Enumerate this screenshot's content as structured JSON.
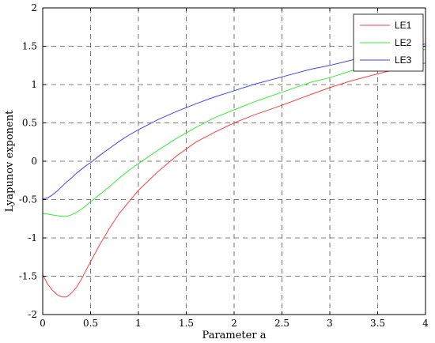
{
  "chart_data": {
    "type": "line",
    "title": "",
    "xlabel": "Parameter a",
    "ylabel": "Lyapunov exponent",
    "xlim": [
      0,
      4
    ],
    "ylim": [
      -2,
      2
    ],
    "x_ticks": [
      "0",
      "0.5",
      "1",
      "1.5",
      "2",
      "2.5",
      "3",
      "3.5",
      "4"
    ],
    "y_ticks": [
      "-2",
      "-1.5",
      "-1",
      "-0.5",
      "0",
      "0.5",
      "1",
      "1.5",
      "2"
    ],
    "grid": true,
    "legend_position": "top-right",
    "series": [
      {
        "name": "LE1",
        "color": "#ff4040",
        "x": [
          0,
          0.05,
          0.1,
          0.15,
          0.2,
          0.25,
          0.3,
          0.35,
          0.4,
          0.45,
          0.5,
          0.6,
          0.7,
          0.8,
          0.9,
          1.0,
          1.2,
          1.4,
          1.6,
          1.8,
          2.0,
          2.2,
          2.5,
          2.8,
          3.0,
          3.2,
          3.5,
          3.8,
          4.0
        ],
        "y": [
          -1.48,
          -1.6,
          -1.68,
          -1.74,
          -1.77,
          -1.77,
          -1.72,
          -1.65,
          -1.55,
          -1.43,
          -1.31,
          -1.08,
          -0.87,
          -0.68,
          -0.53,
          -0.38,
          -0.14,
          0.07,
          0.25,
          0.38,
          0.5,
          0.6,
          0.73,
          0.87,
          0.96,
          1.04,
          1.14,
          1.23,
          1.28
        ]
      },
      {
        "name": "LE2",
        "color": "#33ee33",
        "x": [
          0,
          0.05,
          0.1,
          0.15,
          0.2,
          0.25,
          0.3,
          0.35,
          0.4,
          0.45,
          0.5,
          0.6,
          0.7,
          0.8,
          0.9,
          1.0,
          1.2,
          1.4,
          1.6,
          1.8,
          2.0,
          2.2,
          2.5,
          2.8,
          3.0,
          3.2,
          3.5,
          3.8,
          4.0
        ],
        "y": [
          -0.68,
          -0.69,
          -0.7,
          -0.71,
          -0.72,
          -0.72,
          -0.7,
          -0.67,
          -0.63,
          -0.58,
          -0.53,
          -0.43,
          -0.33,
          -0.22,
          -0.12,
          -0.03,
          0.14,
          0.3,
          0.44,
          0.57,
          0.67,
          0.77,
          0.9,
          1.03,
          1.09,
          1.17,
          1.28,
          1.39,
          1.46
        ]
      },
      {
        "name": "LE3",
        "color": "#4040ff",
        "x": [
          0,
          0.05,
          0.1,
          0.15,
          0.2,
          0.25,
          0.3,
          0.35,
          0.4,
          0.45,
          0.5,
          0.6,
          0.7,
          0.8,
          0.9,
          1.0,
          1.2,
          1.4,
          1.6,
          1.8,
          2.0,
          2.2,
          2.5,
          2.8,
          3.0,
          3.2,
          3.5,
          3.8,
          4.0
        ],
        "y": [
          -0.49,
          -0.48,
          -0.44,
          -0.39,
          -0.33,
          -0.27,
          -0.22,
          -0.16,
          -0.11,
          -0.06,
          -0.02,
          0.08,
          0.17,
          0.26,
          0.34,
          0.41,
          0.54,
          0.65,
          0.75,
          0.84,
          0.92,
          1.0,
          1.1,
          1.2,
          1.25,
          1.31,
          1.41,
          1.49,
          1.53
        ]
      }
    ]
  }
}
